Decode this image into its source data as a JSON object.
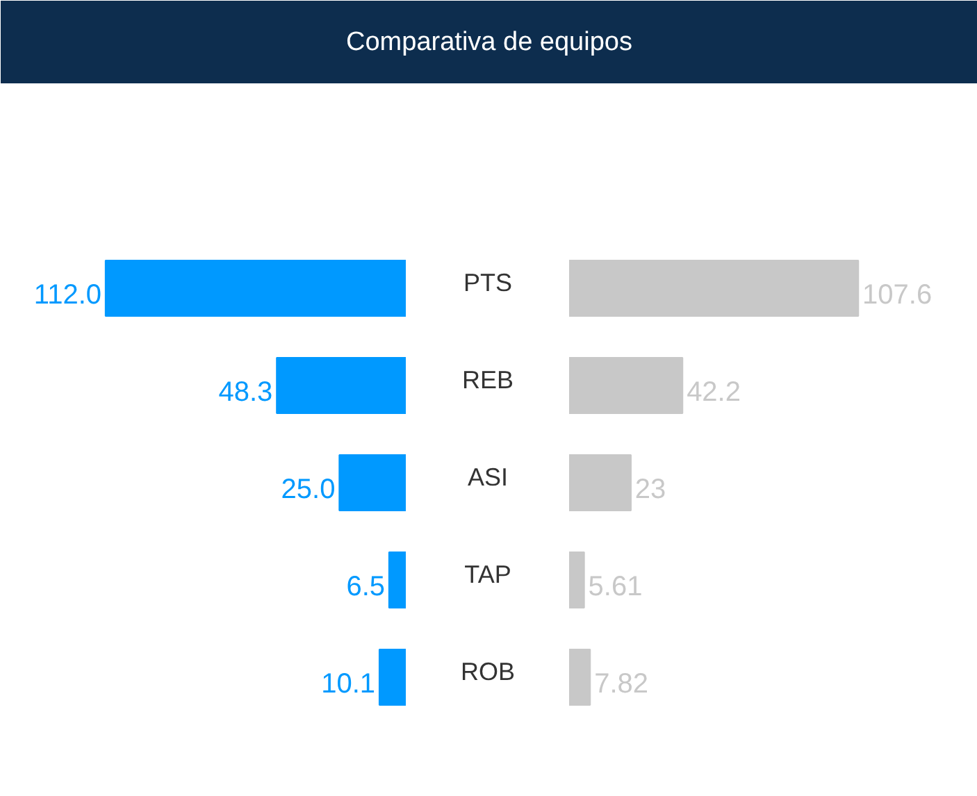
{
  "chart_data": [
    {
      "type": "bar",
      "orientation": "horizontal",
      "title": "Comparativa de equipos",
      "categories": [
        "PTS",
        "REB",
        "ASI",
        "TAP",
        "ROB"
      ],
      "xlim": [
        151,
        0
      ],
      "tick_labels": false,
      "series": [
        {
          "color": "#0099ff",
          "values": [
            112.0,
            48.3,
            25.0,
            6.5,
            10.1
          ],
          "value_labels": [
            "112.0",
            "48.3",
            "25.0",
            "6.5",
            "10.1"
          ]
        }
      ]
    },
    {
      "type": "bar",
      "orientation": "horizontal",
      "categories": [
        null,
        null,
        null,
        null,
        null
      ],
      "xlim": [
        0,
        152
      ],
      "tick_labels": false,
      "series": [
        {
          "color": "#c8c8c8",
          "values": [
            107.6,
            42.2,
            23,
            5.61,
            7.82
          ],
          "value_labels": [
            "107.6",
            "42.2",
            "23",
            "5.61",
            "7.82"
          ]
        }
      ]
    }
  ]
}
